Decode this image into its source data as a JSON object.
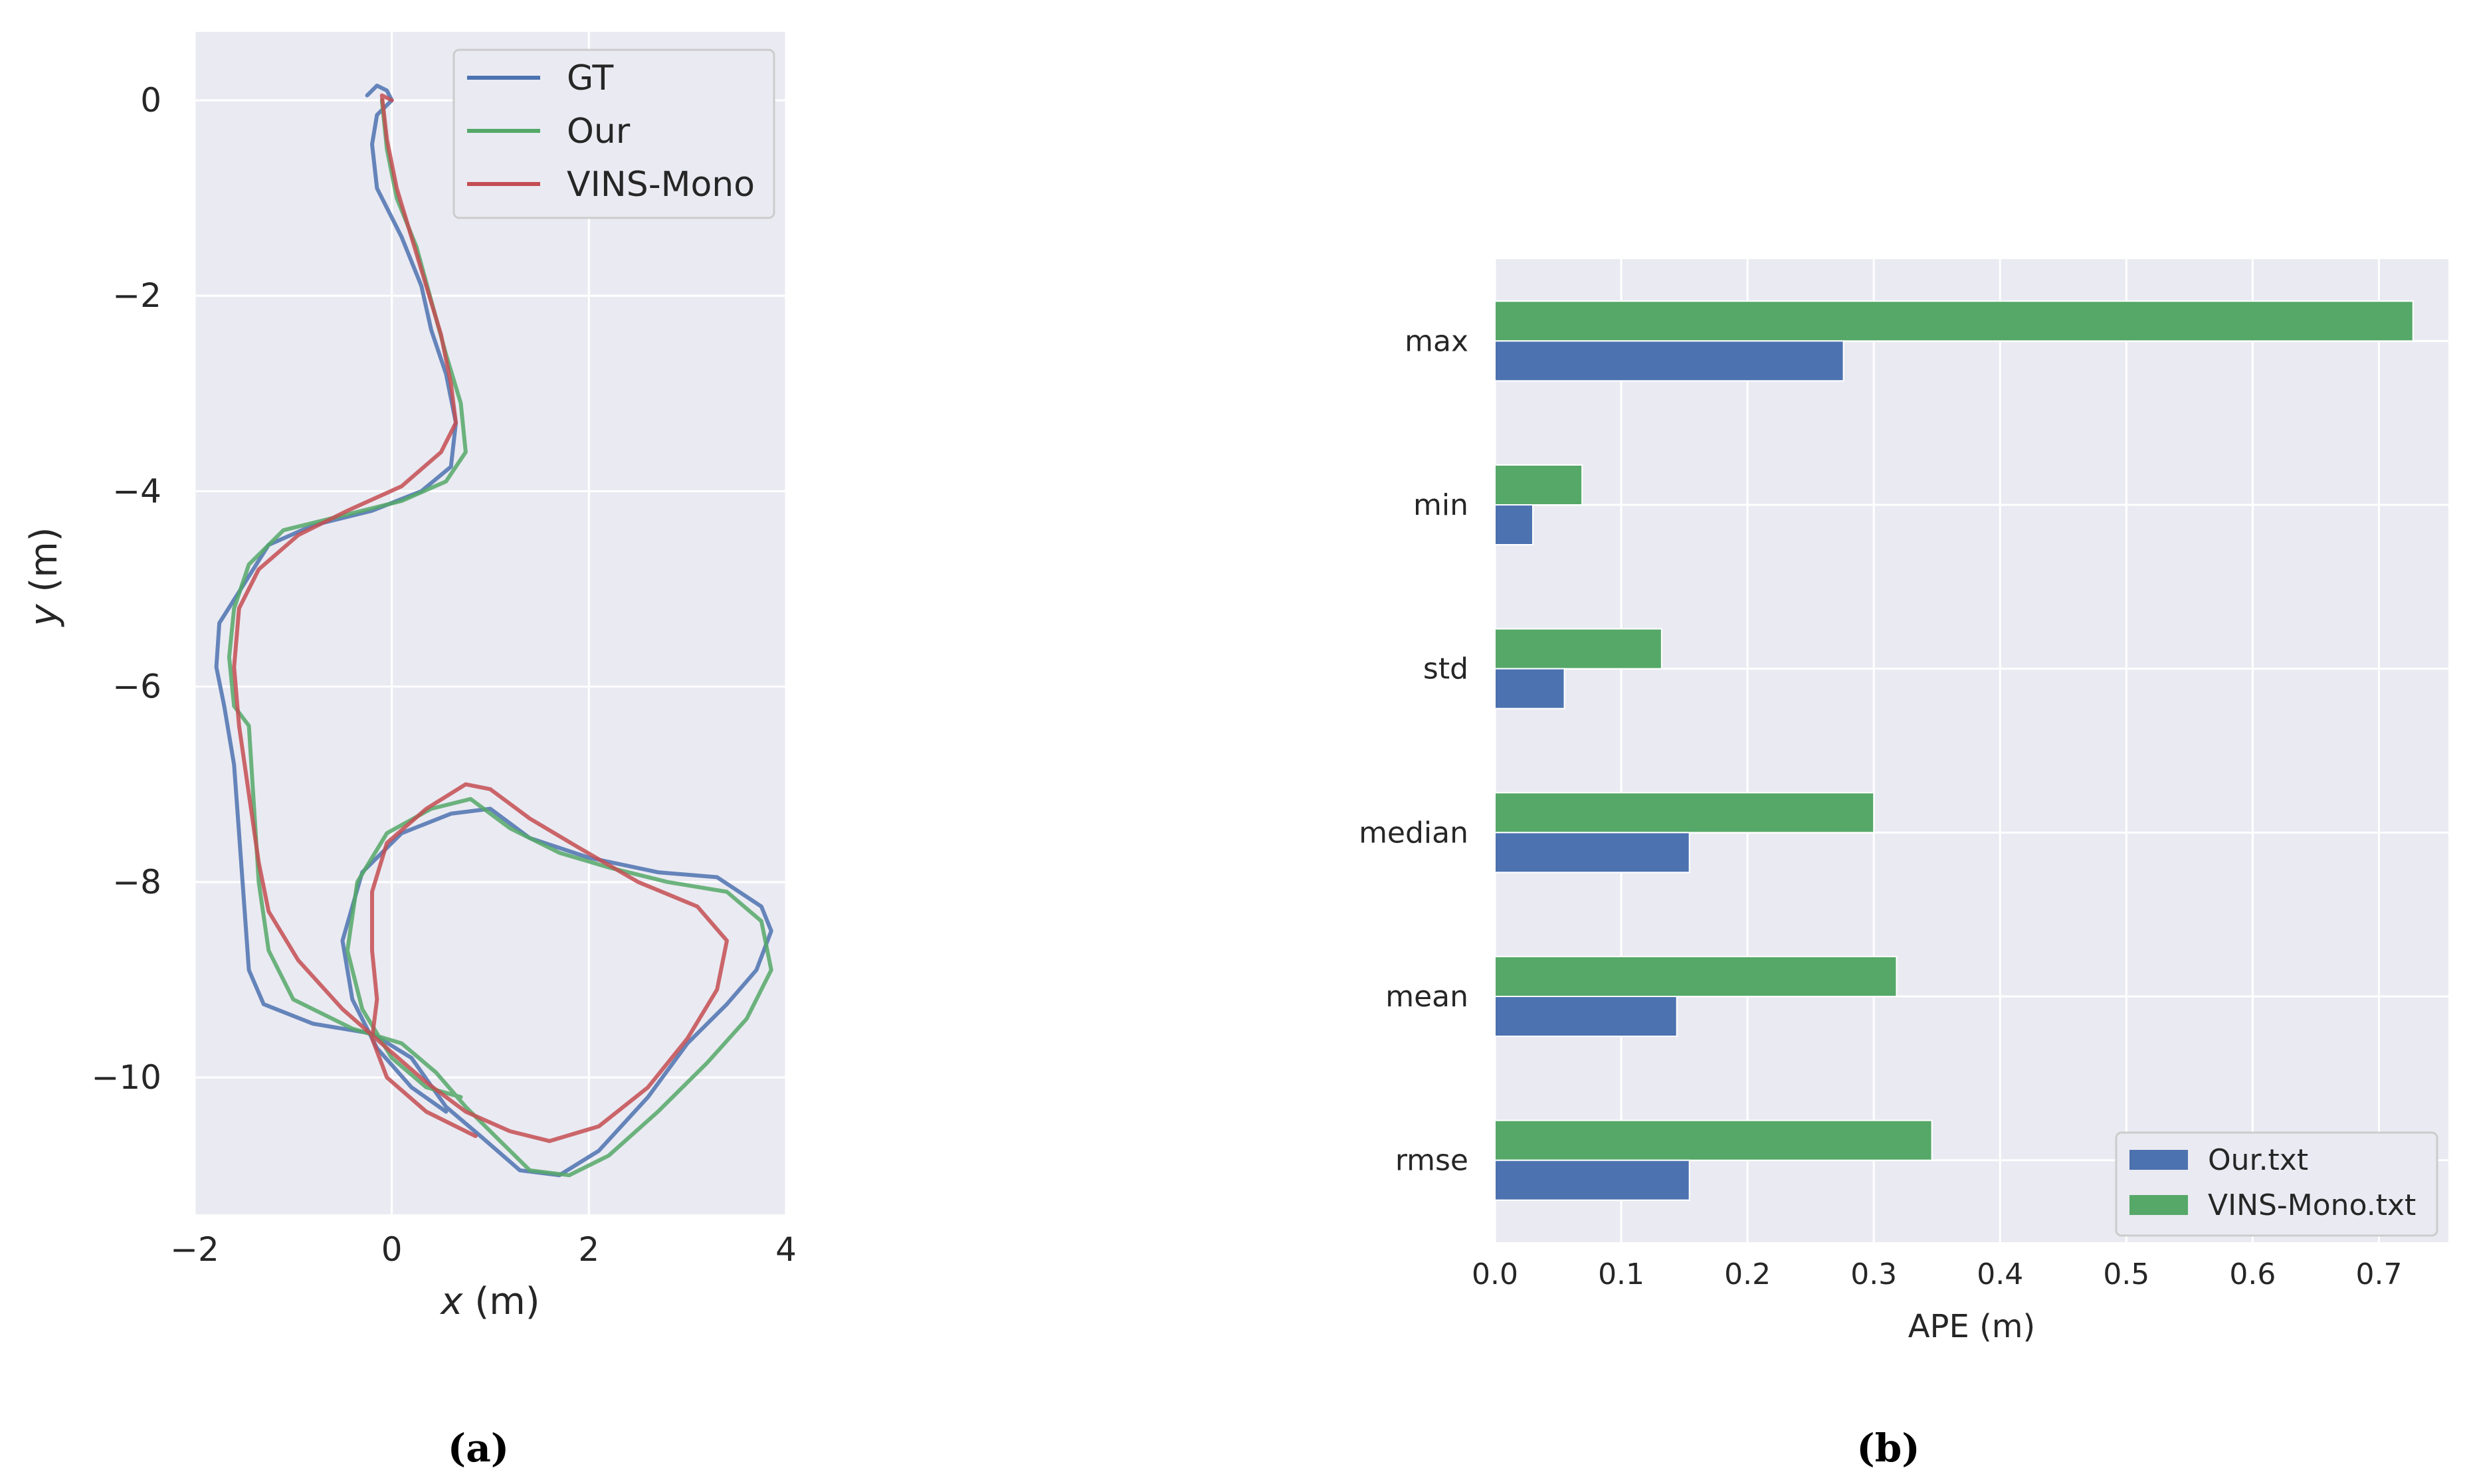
{
  "chart_data": [
    {
      "type": "line",
      "panel_label": "(a)",
      "xlabel_var": "x",
      "xlabel_unit": " (m)",
      "ylabel_var": "y",
      "ylabel_unit": " (m)",
      "xlim": [
        -2,
        4
      ],
      "ylim": [
        -11.4,
        0.7
      ],
      "xticks": [
        -2,
        0,
        2,
        4
      ],
      "yticks": [
        0,
        -2,
        -4,
        -6,
        -8,
        -10
      ],
      "xtick_labels": [
        "−2",
        "0",
        "2",
        "4"
      ],
      "ytick_labels": [
        "0",
        "−2",
        "−4",
        "−6",
        "−8",
        "−10"
      ],
      "grid": true,
      "legend_position": "top-right",
      "series": [
        {
          "name": "GT",
          "color": "#4c72b0",
          "points": [
            [
              -0.25,
              0.05
            ],
            [
              -0.15,
              0.15
            ],
            [
              -0.05,
              0.1
            ],
            [
              0.0,
              0.0
            ],
            [
              -0.15,
              -0.15
            ],
            [
              -0.2,
              -0.45
            ],
            [
              -0.15,
              -0.9
            ],
            [
              0.1,
              -1.4
            ],
            [
              0.3,
              -1.9
            ],
            [
              0.4,
              -2.35
            ],
            [
              0.55,
              -2.8
            ],
            [
              0.65,
              -3.3
            ],
            [
              0.6,
              -3.75
            ],
            [
              0.3,
              -4.0
            ],
            [
              -0.2,
              -4.2
            ],
            [
              -0.8,
              -4.35
            ],
            [
              -1.25,
              -4.55
            ],
            [
              -1.5,
              -4.95
            ],
            [
              -1.75,
              -5.35
            ],
            [
              -1.78,
              -5.8
            ],
            [
              -1.7,
              -6.2
            ],
            [
              -1.6,
              -6.8
            ],
            [
              -1.55,
              -7.5
            ],
            [
              -1.5,
              -8.2
            ],
            [
              -1.45,
              -8.9
            ],
            [
              -1.3,
              -9.25
            ],
            [
              -0.8,
              -9.45
            ],
            [
              -0.2,
              -9.55
            ],
            [
              0.2,
              -9.8
            ],
            [
              0.55,
              -10.3
            ],
            [
              0.9,
              -10.6
            ],
            [
              1.3,
              -10.95
            ],
            [
              1.7,
              -11.0
            ],
            [
              2.1,
              -10.75
            ],
            [
              2.6,
              -10.2
            ],
            [
              3.0,
              -9.65
            ],
            [
              3.4,
              -9.25
            ],
            [
              3.7,
              -8.9
            ],
            [
              3.85,
              -8.5
            ],
            [
              3.75,
              -8.25
            ],
            [
              3.3,
              -7.95
            ],
            [
              2.7,
              -7.9
            ],
            [
              2.0,
              -7.75
            ],
            [
              1.4,
              -7.55
            ],
            [
              1.0,
              -7.25
            ],
            [
              0.6,
              -7.3
            ],
            [
              0.1,
              -7.5
            ],
            [
              -0.3,
              -7.9
            ],
            [
              -0.5,
              -8.6
            ],
            [
              -0.4,
              -9.2
            ],
            [
              -0.15,
              -9.7
            ],
            [
              0.2,
              -10.1
            ],
            [
              0.55,
              -10.35
            ]
          ]
        },
        {
          "name": "Our",
          "color": "#55a868",
          "points": [
            [
              -0.1,
              0.0
            ],
            [
              -0.05,
              -0.5
            ],
            [
              0.05,
              -1.0
            ],
            [
              0.25,
              -1.5
            ],
            [
              0.4,
              -2.05
            ],
            [
              0.55,
              -2.6
            ],
            [
              0.7,
              -3.1
            ],
            [
              0.75,
              -3.6
            ],
            [
              0.55,
              -3.9
            ],
            [
              0.1,
              -4.1
            ],
            [
              -0.5,
              -4.25
            ],
            [
              -1.1,
              -4.4
            ],
            [
              -1.45,
              -4.75
            ],
            [
              -1.6,
              -5.2
            ],
            [
              -1.65,
              -5.7
            ],
            [
              -1.6,
              -6.2
            ],
            [
              -1.45,
              -6.4
            ],
            [
              -1.4,
              -7.2
            ],
            [
              -1.35,
              -8.0
            ],
            [
              -1.25,
              -8.7
            ],
            [
              -1.0,
              -9.2
            ],
            [
              -0.4,
              -9.5
            ],
            [
              0.1,
              -9.65
            ],
            [
              0.45,
              -9.95
            ],
            [
              0.75,
              -10.3
            ],
            [
              1.1,
              -10.65
            ],
            [
              1.4,
              -10.95
            ],
            [
              1.8,
              -11.0
            ],
            [
              2.2,
              -10.8
            ],
            [
              2.7,
              -10.35
            ],
            [
              3.2,
              -9.85
            ],
            [
              3.6,
              -9.4
            ],
            [
              3.85,
              -8.9
            ],
            [
              3.75,
              -8.4
            ],
            [
              3.4,
              -8.1
            ],
            [
              2.8,
              -8.0
            ],
            [
              2.2,
              -7.85
            ],
            [
              1.7,
              -7.7
            ],
            [
              1.2,
              -7.45
            ],
            [
              0.8,
              -7.15
            ],
            [
              0.4,
              -7.25
            ],
            [
              -0.05,
              -7.5
            ],
            [
              -0.35,
              -8.0
            ],
            [
              -0.45,
              -8.7
            ],
            [
              -0.3,
              -9.3
            ],
            [
              0.0,
              -9.8
            ],
            [
              0.35,
              -10.1
            ],
            [
              0.7,
              -10.2
            ]
          ]
        },
        {
          "name": "VINS-Mono",
          "color": "#c44e52",
          "points": [
            [
              0.0,
              0.0
            ],
            [
              -0.1,
              0.05
            ],
            [
              -0.05,
              -0.4
            ],
            [
              0.05,
              -0.9
            ],
            [
              0.2,
              -1.4
            ],
            [
              0.35,
              -1.9
            ],
            [
              0.5,
              -2.4
            ],
            [
              0.6,
              -2.9
            ],
            [
              0.65,
              -3.3
            ],
            [
              0.5,
              -3.6
            ],
            [
              0.1,
              -3.95
            ],
            [
              -0.45,
              -4.2
            ],
            [
              -0.95,
              -4.45
            ],
            [
              -1.35,
              -4.8
            ],
            [
              -1.55,
              -5.2
            ],
            [
              -1.6,
              -5.8
            ],
            [
              -1.55,
              -6.4
            ],
            [
              -1.45,
              -7.1
            ],
            [
              -1.35,
              -7.8
            ],
            [
              -1.25,
              -8.3
            ],
            [
              -0.95,
              -8.8
            ],
            [
              -0.5,
              -9.3
            ],
            [
              -0.05,
              -9.7
            ],
            [
              0.35,
              -10.05
            ],
            [
              0.75,
              -10.35
            ],
            [
              1.2,
              -10.55
            ],
            [
              1.6,
              -10.65
            ],
            [
              2.1,
              -10.5
            ],
            [
              2.6,
              -10.1
            ],
            [
              3.0,
              -9.6
            ],
            [
              3.3,
              -9.1
            ],
            [
              3.4,
              -8.6
            ],
            [
              3.1,
              -8.25
            ],
            [
              2.5,
              -8.0
            ],
            [
              1.9,
              -7.65
            ],
            [
              1.4,
              -7.35
            ],
            [
              1.0,
              -7.05
            ],
            [
              0.75,
              -7.0
            ],
            [
              0.35,
              -7.25
            ],
            [
              -0.05,
              -7.6
            ],
            [
              -0.2,
              -8.1
            ],
            [
              -0.2,
              -8.7
            ],
            [
              -0.15,
              -9.2
            ],
            [
              -0.2,
              -9.6
            ],
            [
              -0.05,
              -10.0
            ],
            [
              0.35,
              -10.35
            ],
            [
              0.85,
              -10.6
            ]
          ]
        }
      ]
    },
    {
      "type": "bar",
      "orientation": "horizontal",
      "panel_label": "(b)",
      "xlabel": "APE (m)",
      "ylabel": "",
      "xlim": [
        0,
        0.755
      ],
      "xticks": [
        0.0,
        0.1,
        0.2,
        0.3,
        0.4,
        0.5,
        0.6,
        0.7
      ],
      "xtick_labels": [
        "0.0",
        "0.1",
        "0.2",
        "0.3",
        "0.4",
        "0.5",
        "0.6",
        "0.7"
      ],
      "categories": [
        "max",
        "min",
        "std",
        "median",
        "mean",
        "rmse"
      ],
      "grid": true,
      "legend_position": "bottom-right",
      "series": [
        {
          "name": "Our.txt",
          "color": "#4c72b0",
          "values": [
            0.276,
            0.03,
            0.055,
            0.154,
            0.144,
            0.154
          ]
        },
        {
          "name": "VINS-Mono.txt",
          "color": "#55a868",
          "values": [
            0.727,
            0.069,
            0.132,
            0.3,
            0.318,
            0.346
          ]
        }
      ]
    }
  ]
}
